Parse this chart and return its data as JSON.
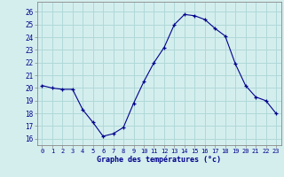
{
  "hours": [
    0,
    1,
    2,
    3,
    4,
    5,
    6,
    7,
    8,
    9,
    10,
    11,
    12,
    13,
    14,
    15,
    16,
    17,
    18,
    19,
    20,
    21,
    22,
    23
  ],
  "temps": [
    20.2,
    20.0,
    19.9,
    19.9,
    18.3,
    17.3,
    16.2,
    16.4,
    16.9,
    18.8,
    20.5,
    22.0,
    23.2,
    25.0,
    25.8,
    25.7,
    25.4,
    24.7,
    24.1,
    21.9,
    20.2,
    19.3,
    19.0,
    18.0
  ],
  "line_color": "#00008B",
  "marker_color": "#00008B",
  "bg_color": "#d4eeee",
  "grid_color": "#b0d8d8",
  "xlabel": "Graphe des températures (°c)",
  "xlabel_color": "#00008B",
  "tick_color": "#00008B",
  "ylim": [
    15.5,
    26.8
  ],
  "xlim": [
    -0.5,
    23.5
  ],
  "yticks": [
    16,
    17,
    18,
    19,
    20,
    21,
    22,
    23,
    24,
    25,
    26
  ],
  "xticks": [
    0,
    1,
    2,
    3,
    4,
    5,
    6,
    7,
    8,
    9,
    10,
    11,
    12,
    13,
    14,
    15,
    16,
    17,
    18,
    19,
    20,
    21,
    22,
    23
  ],
  "xtick_labels": [
    "0",
    "1",
    "2",
    "3",
    "4",
    "5",
    "6",
    "7",
    "8",
    "9",
    "10",
    "11",
    "12",
    "13",
    "14",
    "15",
    "16",
    "17",
    "18",
    "19",
    "20",
    "21",
    "22",
    "23"
  ]
}
